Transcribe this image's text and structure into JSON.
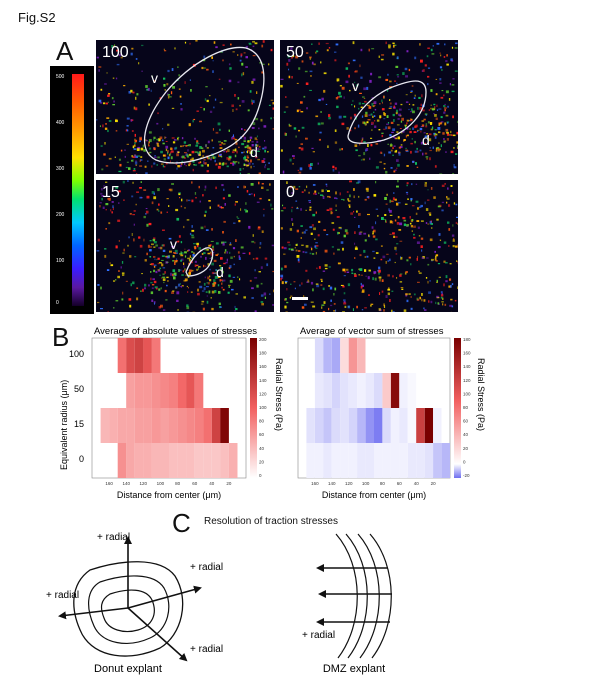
{
  "figure_tag": "Fig.S2",
  "panel_a": {
    "letter": "A",
    "colorbar_ticks": [
      "500",
      "400",
      "300",
      "200",
      "100",
      "0"
    ],
    "images": [
      {
        "label": "100",
        "v": "v",
        "d": "d"
      },
      {
        "label": "50",
        "v": "v",
        "d": "d"
      },
      {
        "label": "15",
        "v": "v",
        "d": "d"
      },
      {
        "label": "0"
      }
    ]
  },
  "panel_b": {
    "letter": "B",
    "ylabel": "Equivalent radius (μm)",
    "y_ticks": [
      "100",
      "50",
      "15",
      "0"
    ],
    "x_ticks": [
      "160",
      "140",
      "120",
      "100",
      "80",
      "60",
      "40",
      "20"
    ],
    "left": {
      "title": "Average of absolute values of stresses",
      "xlabel": "Distance from center (μm)",
      "colorbar_label": "Radial Stress (Pa)",
      "colorbar_ticks": [
        "200",
        "180",
        "160",
        "140",
        "120",
        "100",
        "80",
        "60",
        "40",
        "20",
        "0"
      ]
    },
    "right": {
      "title": "Average of vector sum of stresses",
      "xlabel": "Distance from center (μm)",
      "colorbar_label": "Radial Stress (Pa)",
      "colorbar_ticks": [
        "180",
        "160",
        "140",
        "120",
        "100",
        "80",
        "60",
        "40",
        "20",
        "0",
        "-20"
      ]
    }
  },
  "panel_c": {
    "letter": "C",
    "title": "Resolution of traction stresses",
    "radial_label": "+ radial",
    "donut_caption": "Donut explant",
    "dmz_caption": "DMZ explant"
  },
  "chart_data": [
    {
      "type": "heatmap",
      "title": "Average of absolute values of stresses",
      "xlabel": "Distance from center (μm)",
      "ylabel": "Equivalent radius (μm)",
      "y_categories": [
        "100",
        "50",
        "15",
        "0"
      ],
      "x_range": [
        180,
        0
      ],
      "color_range": [
        0,
        200
      ],
      "rows": [
        {
          "radius": "100",
          "cells": [
            [
              150,
              140,
              90
            ],
            [
              140,
              130,
              120
            ],
            [
              130,
              120,
              130
            ],
            [
              120,
              110,
              110
            ],
            [
              110,
              100,
              85
            ]
          ]
        },
        {
          "radius": "50",
          "cells": [
            [
              140,
              130,
              60
            ],
            [
              130,
              120,
              65
            ],
            [
              120,
              110,
              65
            ],
            [
              110,
              100,
              70
            ],
            [
              100,
              90,
              75
            ],
            [
              90,
              80,
              80
            ],
            [
              80,
              70,
              95
            ],
            [
              70,
              60,
              110
            ],
            [
              60,
              50,
              85
            ]
          ]
        },
        {
          "radius": "15",
          "cells": [
            [
              170,
              160,
              45
            ],
            [
              160,
              150,
              50
            ],
            [
              150,
              140,
              55
            ],
            [
              140,
              130,
              55
            ],
            [
              130,
              120,
              60
            ],
            [
              120,
              110,
              60
            ],
            [
              110,
              100,
              65
            ],
            [
              100,
              90,
              60
            ],
            [
              90,
              80,
              65
            ],
            [
              80,
              70,
              70
            ],
            [
              70,
              60,
              75
            ],
            [
              60,
              50,
              80
            ],
            [
              50,
              40,
              90
            ],
            [
              40,
              30,
              130
            ],
            [
              30,
              20,
              195
            ]
          ]
        },
        {
          "radius": "0",
          "cells": [
            [
              150,
              140,
              70
            ],
            [
              140,
              130,
              55
            ],
            [
              130,
              120,
              50
            ],
            [
              120,
              110,
              50
            ],
            [
              110,
              100,
              45
            ],
            [
              100,
              90,
              45
            ],
            [
              90,
              80,
              40
            ],
            [
              80,
              70,
              40
            ],
            [
              70,
              60,
              40
            ],
            [
              60,
              50,
              35
            ],
            [
              50,
              40,
              35
            ],
            [
              40,
              30,
              35
            ],
            [
              30,
              20,
              40
            ],
            [
              20,
              10,
              50
            ]
          ]
        }
      ]
    },
    {
      "type": "heatmap",
      "title": "Average of vector sum of stresses",
      "xlabel": "Distance from center (μm)",
      "ylabel": "Equivalent radius (μm)",
      "y_categories": [
        "100",
        "50",
        "15",
        "0"
      ],
      "x_range": [
        180,
        0
      ],
      "color_range": [
        -20,
        180
      ],
      "rows": [
        {
          "radius": "100",
          "cells": [
            [
              160,
              150,
              -5
            ],
            [
              150,
              140,
              -10
            ],
            [
              140,
              130,
              -12
            ],
            [
              130,
              120,
              20
            ],
            [
              120,
              110,
              60
            ],
            [
              110,
              100,
              40
            ]
          ]
        },
        {
          "radius": "50",
          "cells": [
            [
              160,
              150,
              -3
            ],
            [
              150,
              140,
              -4
            ],
            [
              140,
              130,
              -6
            ],
            [
              130,
              120,
              -4
            ],
            [
              120,
              110,
              -3
            ],
            [
              110,
              100,
              -2
            ],
            [
              100,
              90,
              -3
            ],
            [
              90,
              80,
              -5
            ],
            [
              80,
              70,
              30
            ],
            [
              70,
              60,
              170
            ],
            [
              60,
              50,
              -2
            ],
            [
              50,
              40,
              -1
            ]
          ]
        },
        {
          "radius": "15",
          "cells": [
            [
              170,
              160,
              -4
            ],
            [
              160,
              150,
              -6
            ],
            [
              150,
              140,
              -8
            ],
            [
              140,
              130,
              -5
            ],
            [
              130,
              120,
              -4
            ],
            [
              120,
              110,
              -6
            ],
            [
              110,
              100,
              -10
            ],
            [
              100,
              90,
              -15
            ],
            [
              90,
              80,
              -18
            ],
            [
              80,
              70,
              -5
            ],
            [
              70,
              60,
              -2
            ],
            [
              60,
              50,
              -3
            ],
            [
              50,
              40,
              -1
            ],
            [
              40,
              30,
              120
            ],
            [
              30,
              20,
              180
            ],
            [
              20,
              10,
              -2
            ]
          ]
        },
        {
          "radius": "0",
          "cells": [
            [
              170,
              160,
              -2
            ],
            [
              160,
              150,
              -2
            ],
            [
              150,
              140,
              -3
            ],
            [
              140,
              130,
              -2
            ],
            [
              130,
              120,
              -2
            ],
            [
              120,
              110,
              -2
            ],
            [
              110,
              100,
              -3
            ],
            [
              100,
              90,
              -3
            ],
            [
              90,
              80,
              -2
            ],
            [
              80,
              70,
              -2
            ],
            [
              70,
              60,
              -2
            ],
            [
              60,
              50,
              -2
            ],
            [
              50,
              40,
              -3
            ],
            [
              40,
              30,
              -3
            ],
            [
              30,
              20,
              -4
            ],
            [
              20,
              10,
              -8
            ],
            [
              10,
              0,
              -10
            ]
          ]
        }
      ]
    }
  ]
}
